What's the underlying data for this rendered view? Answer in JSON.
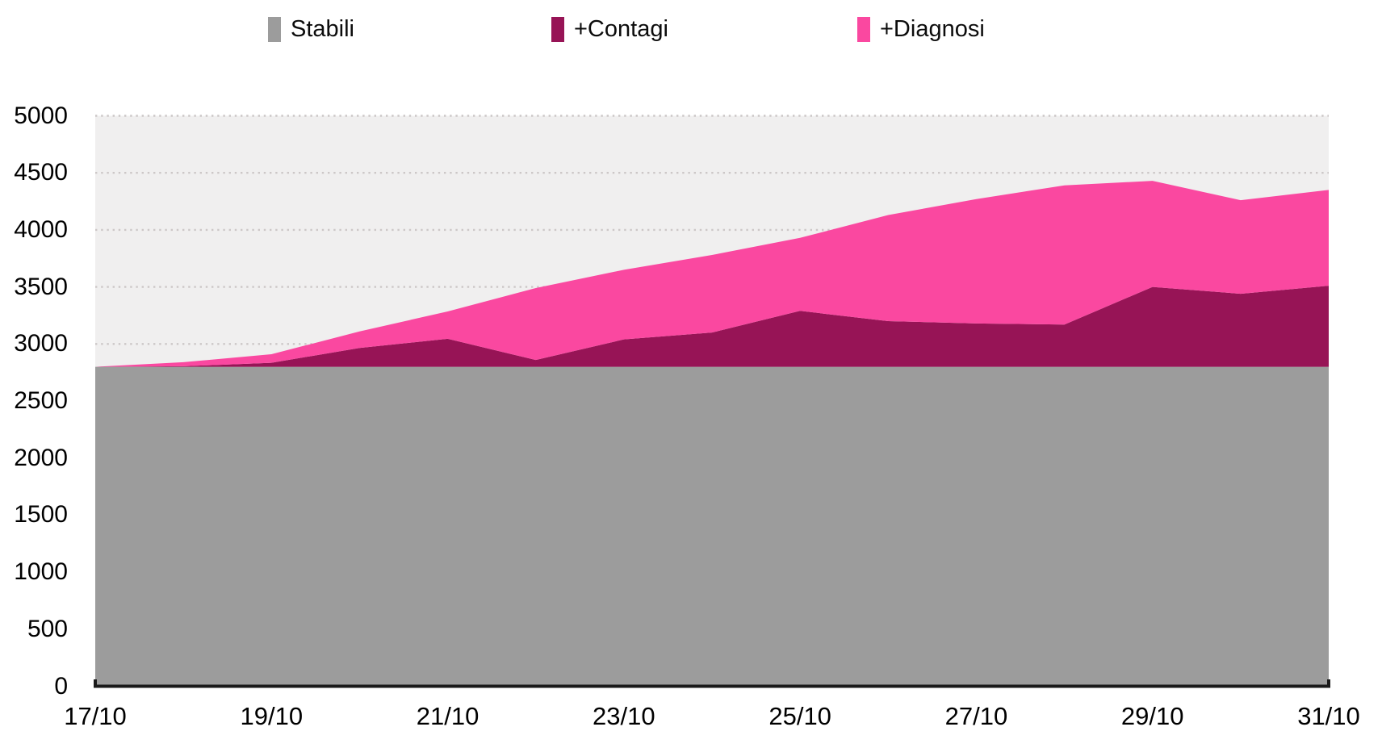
{
  "legend": {
    "items": [
      {
        "label": "Stabili",
        "color": "#9c9c9c"
      },
      {
        "label": "+Contagi",
        "color": "#971456"
      },
      {
        "label": "+Diagnosi",
        "color": "#fa48a0"
      }
    ]
  },
  "chart_data": {
    "type": "area",
    "stacked": true,
    "title": "",
    "xlabel": "",
    "ylabel": "",
    "x": [
      "17/10",
      "18/10",
      "19/10",
      "20/10",
      "21/10",
      "22/10",
      "23/10",
      "24/10",
      "25/10",
      "26/10",
      "27/10",
      "28/10",
      "29/10",
      "30/10",
      "31/10"
    ],
    "series": [
      {
        "name": "Stabili",
        "color": "#9c9c9c",
        "values": [
          2800,
          2800,
          2800,
          2800,
          2800,
          2800,
          2800,
          2800,
          2800,
          2800,
          2800,
          2800,
          2800,
          2800,
          2800
        ]
      },
      {
        "name": "+Contagi",
        "color": "#971456",
        "values": [
          0,
          5,
          35,
          165,
          245,
          60,
          240,
          300,
          490,
          400,
          380,
          370,
          700,
          640,
          710
        ]
      },
      {
        "name": "+Diagnosi",
        "color": "#fa48a0",
        "values": [
          0,
          35,
          75,
          145,
          240,
          630,
          610,
          680,
          640,
          930,
          1090,
          1220,
          930,
          820,
          840
        ]
      }
    ],
    "stacked_totals": [
      2800,
      2840,
      2910,
      3110,
      3285,
      3490,
      3650,
      3780,
      3930,
      4130,
      4270,
      4390,
      4430,
      4260,
      4350
    ],
    "ylim": [
      0,
      5000
    ],
    "yticks": [
      0,
      500,
      1000,
      1500,
      2000,
      2500,
      3000,
      3500,
      4000,
      4500,
      5000
    ],
    "xticks": [
      "17/10",
      "19/10",
      "21/10",
      "23/10",
      "25/10",
      "27/10",
      "29/10",
      "31/10"
    ],
    "grid": "horizontal-dotted",
    "grid_color": "#ccc7c7",
    "plot_bg": "#f0efef",
    "axis_color": "#1a1a1a",
    "legend_position": "top"
  }
}
